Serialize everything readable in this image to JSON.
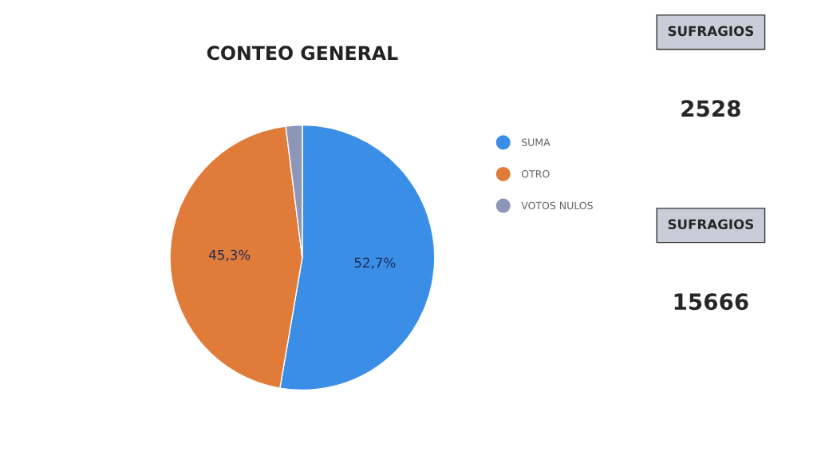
{
  "chart_data": {
    "type": "pie",
    "title": "CONTEO GENERAL",
    "categories": [
      "SUMA",
      "OTRO",
      "VOTOS NULOS"
    ],
    "values": [
      52.7,
      45.3,
      2.0
    ],
    "colors": [
      "#3a8ee6",
      "#e07b39",
      "#8d96b8"
    ],
    "value_labels": [
      "52,7%",
      "45,3%",
      null
    ],
    "legend": "right",
    "annotations": [
      "SUFRAGIOS",
      "2528",
      "SUFRAGIOS",
      "15666"
    ]
  }
}
